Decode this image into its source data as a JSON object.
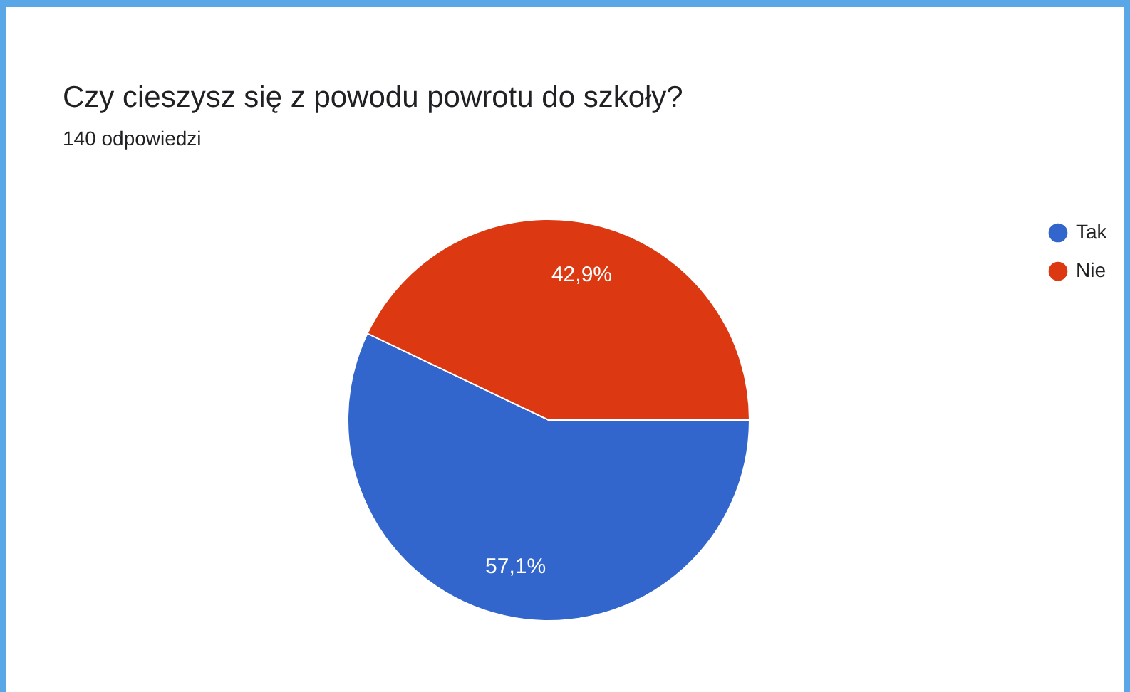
{
  "chart_data": {
    "type": "pie",
    "title": "Czy cieszysz się z powodu powrotu do szkoły?",
    "subtitle": "140 odpowiedzi",
    "categories": [
      "Tak",
      "Nie"
    ],
    "values": [
      57.1,
      42.9
    ],
    "colors": [
      "#3366cc",
      "#dc3912"
    ],
    "value_labels": [
      "57,1%",
      "42,9%"
    ],
    "legend": "top right"
  }
}
